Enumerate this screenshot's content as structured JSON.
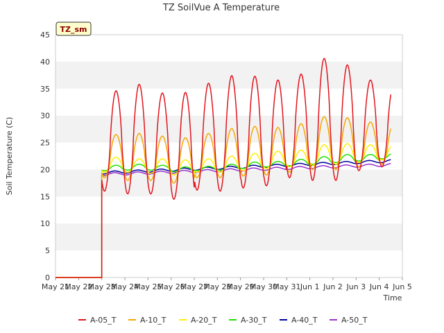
{
  "chart_data": {
    "type": "line",
    "title": "TZ SoilVue A Temperature",
    "xlabel": "Time",
    "ylabel": "Soil Temperature (C)",
    "station_badge": "TZ_sm",
    "ylim": [
      0,
      45
    ],
    "yticks": [
      0,
      5,
      10,
      15,
      20,
      25,
      30,
      35,
      40,
      45
    ],
    "xlim": [
      "2024-05-21",
      "2024-06-05"
    ],
    "xtick_labels": [
      "May 21",
      "May 22",
      "May 23",
      "May 24",
      "May 25",
      "May 26",
      "May 27",
      "May 28",
      "May 29",
      "May 30",
      "May 31",
      "Jun 1",
      "Jun 2",
      "Jun 3",
      "Jun 4",
      "Jun 5"
    ],
    "grid": "horizontal bands",
    "legend": "bottom",
    "x_note": "dates; each series is 0 from May 21 to May 23 00:00 then starts at May 23 00:00 and ends about Jun 4 12:00",
    "series": [
      {
        "name": "A-05_T",
        "color": "#e0141c",
        "daily_min": [
          16.0,
          15.5,
          15.5,
          14.5,
          16.2,
          16.0,
          16.6,
          17.0,
          18.5,
          18.0,
          18.0,
          19.8,
          20.5
        ],
        "daily_max": [
          34.6,
          35.8,
          34.2,
          34.3,
          36.0,
          37.4,
          37.3,
          36.6,
          37.7,
          40.6,
          39.4,
          36.6,
          35.6
        ]
      },
      {
        "name": "A-10_T",
        "color": "#f5a700",
        "daily_min": [
          18.5,
          18.0,
          18.0,
          17.5,
          18.5,
          18.5,
          18.8,
          19.0,
          19.5,
          20.0,
          20.0,
          20.5,
          21.0
        ],
        "daily_max": [
          26.5,
          26.7,
          26.2,
          25.9,
          26.7,
          27.6,
          28.0,
          27.8,
          28.5,
          29.8,
          29.6,
          28.8,
          28.4
        ]
      },
      {
        "name": "A-20_T",
        "color": "#ffee00",
        "daily_min": [
          19.5,
          19.5,
          19.3,
          19.0,
          19.5,
          19.5,
          19.8,
          20.2,
          20.5,
          20.8,
          21.0,
          21.3,
          21.8
        ],
        "daily_max": [
          22.3,
          22.0,
          22.0,
          21.8,
          22.0,
          22.5,
          23.0,
          23.4,
          23.6,
          24.6,
          24.8,
          24.6,
          24.6
        ]
      },
      {
        "name": "A-30_T",
        "color": "#22e000",
        "daily_min": [
          19.8,
          19.9,
          19.9,
          19.6,
          19.8,
          19.9,
          20.2,
          20.5,
          20.7,
          21.0,
          21.3,
          21.6,
          22.0
        ],
        "daily_max": [
          20.8,
          21.0,
          20.8,
          20.5,
          20.6,
          21.0,
          21.4,
          21.5,
          21.9,
          22.4,
          22.8,
          22.8,
          23.0
        ]
      },
      {
        "name": "A-40_T",
        "color": "#00009c",
        "start": 19.4,
        "end": 21.6
      },
      {
        "name": "A-50_T",
        "color": "#9932cc",
        "start": 19.1,
        "end": 20.9
      }
    ]
  }
}
